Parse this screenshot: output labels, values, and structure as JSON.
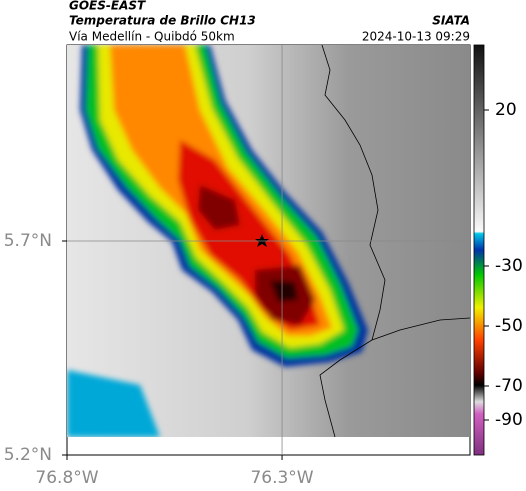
{
  "header": {
    "title": "GOES-EAST",
    "subtitle": "Temperatura de Brillo CH13",
    "source": "SIATA",
    "route": "Vía Medellín - Quibdó 50km",
    "datetime": "2024-10-13 09:29"
  },
  "map": {
    "xlim": [
      -76.8,
      -75.863
    ],
    "ylim": [
      5.2,
      6.158
    ],
    "xticks": [
      {
        "value": -76.8,
        "label": "76.8°W"
      },
      {
        "value": -76.3,
        "label": "76.3°W"
      }
    ],
    "yticks": [
      {
        "value": 5.2,
        "label": "5.2°N"
      },
      {
        "value": 5.7,
        "label": "5.7°N"
      }
    ],
    "grid": true
  },
  "colorbar": {
    "ticks": [
      20,
      -30,
      -50,
      -70,
      -90
    ]
  }
}
